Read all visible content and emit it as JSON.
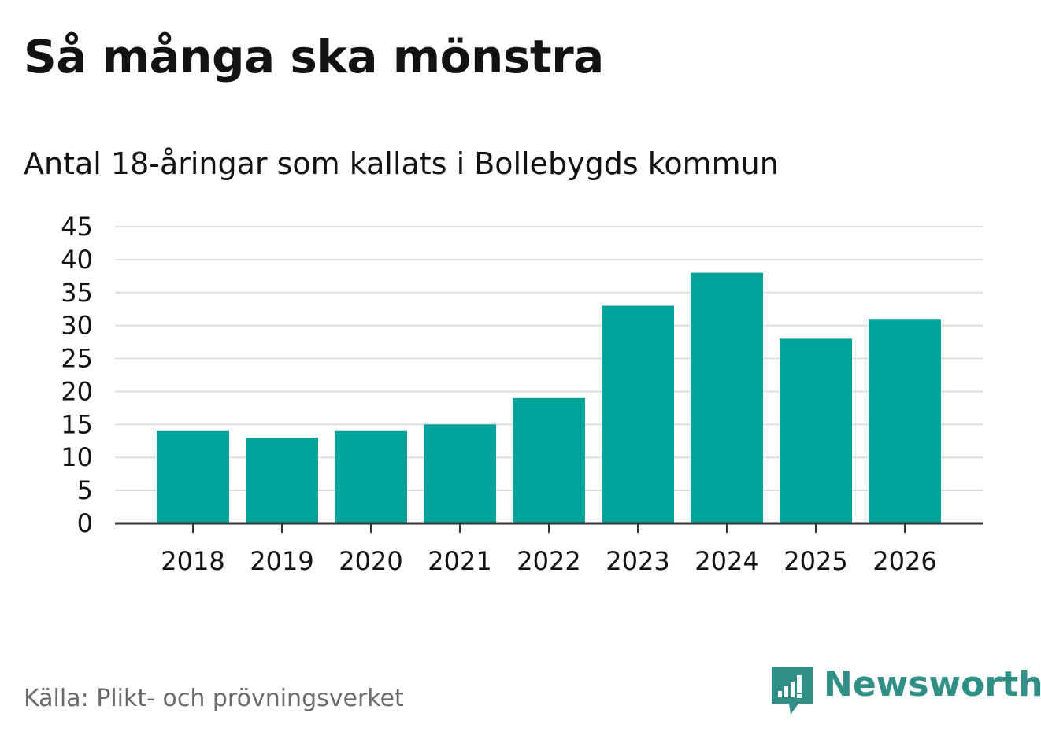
{
  "header": {
    "title": "Så många ska mönstra",
    "subtitle": "Antal 18-åringar som kallats i Bollebygds kommun"
  },
  "footer": {
    "source": "Källa: Plikt- och prövningsverket",
    "brand": "Newsworthy",
    "brand_icon": "newsworthy-logo-icon"
  },
  "colors": {
    "bar": "#00a39a",
    "grid": "#dddddd",
    "axis": "#333333",
    "text": "#121212",
    "muted": "#6b6b6b",
    "brand": "#2f8f85"
  },
  "chart_data": {
    "type": "bar",
    "title": "Så många ska mönstra",
    "subtitle": "Antal 18-åringar som kallats i Bollebygds kommun",
    "xlabel": "",
    "ylabel": "",
    "categories": [
      "2018",
      "2019",
      "2020",
      "2021",
      "2022",
      "2023",
      "2024",
      "2025",
      "2026"
    ],
    "values": [
      14,
      13,
      14,
      15,
      19,
      33,
      38,
      28,
      31
    ],
    "ylim": [
      0,
      45
    ],
    "yticks": [
      0,
      5,
      10,
      15,
      20,
      25,
      30,
      35,
      40,
      45
    ],
    "grid": true,
    "legend": "none"
  }
}
